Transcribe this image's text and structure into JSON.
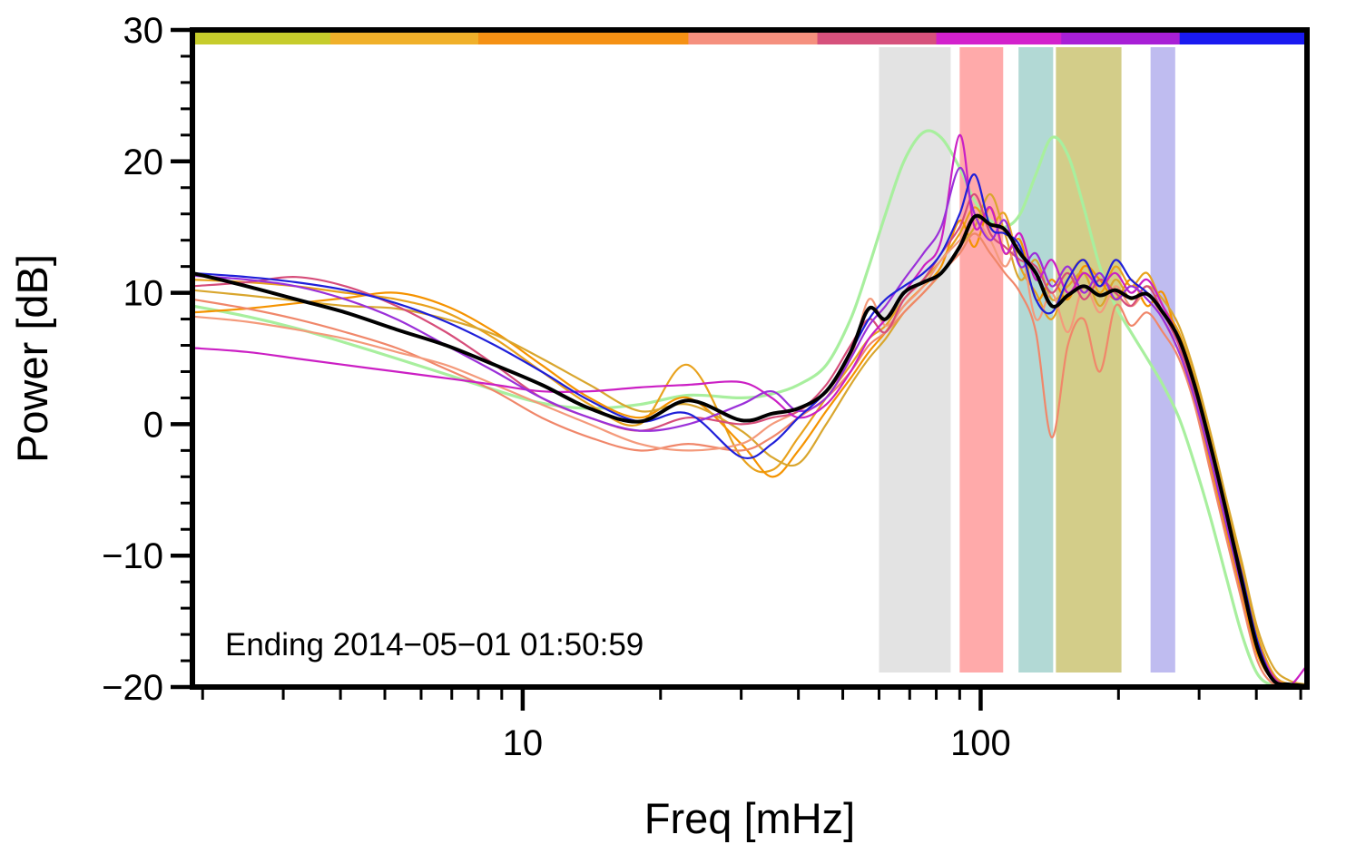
{
  "chart_data": {
    "type": "line",
    "title": "",
    "xlabel": "Freq [mHz]",
    "ylabel": "Power [dB]",
    "annotation": "Ending 2014−05−01 01:50:59",
    "x_scale": "log",
    "xlim": [
      1.9,
      516
    ],
    "ylim": [
      -20,
      30
    ],
    "grid": false,
    "legend": "none",
    "x_major_ticks": [
      {
        "value": 10,
        "label": "10"
      },
      {
        "value": 100,
        "label": "100"
      }
    ],
    "x_minor_ticks": [
      2,
      3,
      4,
      5,
      6,
      7,
      8,
      9,
      20,
      30,
      40,
      50,
      60,
      70,
      80,
      90,
      200,
      300,
      400,
      500
    ],
    "y_major_ticks": [
      {
        "value": 30,
        "label": "30"
      },
      {
        "value": 20,
        "label": "20"
      },
      {
        "value": 10,
        "label": "10"
      },
      {
        "value": 0,
        "label": "0"
      },
      {
        "value": -10,
        "label": "−10"
      },
      {
        "value": -20,
        "label": "−20"
      }
    ],
    "y_minor_step": 2,
    "bands": [
      {
        "name": "band-gray",
        "from": 60,
        "to": 86,
        "color": "#e3e3e3"
      },
      {
        "name": "band-red",
        "from": 90,
        "to": 112,
        "color": "#ffaaaa"
      },
      {
        "name": "band-teal",
        "from": 121,
        "to": 144,
        "color": "#b2d9d5"
      },
      {
        "name": "band-olive",
        "from": 146,
        "to": 203,
        "color": "#d3cd89"
      },
      {
        "name": "band-lavender",
        "from": 235,
        "to": 266,
        "color": "#bfbcf0"
      }
    ],
    "top_bar_segments": [
      {
        "from": 1.9,
        "to": 3.8,
        "color": "#c6cc2c"
      },
      {
        "from": 3.8,
        "to": 8.0,
        "color": "#f0b02a"
      },
      {
        "from": 8.0,
        "to": 23,
        "color": "#f59114"
      },
      {
        "from": 23,
        "to": 44,
        "color": "#f5907e"
      },
      {
        "from": 44,
        "to": 80,
        "color": "#d6517c"
      },
      {
        "from": 80,
        "to": 150,
        "color": "#d321cc"
      },
      {
        "from": 150,
        "to": 272,
        "color": "#a81fd6"
      },
      {
        "from": 272,
        "to": 516,
        "color": "#1a1af0"
      }
    ],
    "frequencies": [
      1.9,
      2.5,
      3.2,
      4.1,
      5.3,
      6.8,
      8.7,
      11,
      14,
      18,
      23,
      30,
      35,
      40,
      46,
      52,
      57,
      62,
      68,
      75,
      82,
      90,
      97,
      105,
      113,
      122,
      132,
      143,
      155,
      168,
      182,
      197,
      213,
      231,
      250,
      271,
      293,
      317,
      343,
      372,
      402,
      436,
      472,
      512
    ],
    "series": [
      {
        "name": "spectrum-green",
        "color": "#a8ef9e",
        "width": 3.2,
        "values": [
          9.0,
          8.2,
          7.3,
          6.2,
          5.0,
          3.8,
          2.6,
          1.6,
          1.2,
          1.5,
          2.2,
          2.0,
          2.3,
          3.0,
          4.5,
          8.0,
          12.0,
          16.0,
          20.0,
          22.2,
          21.8,
          19.5,
          17.0,
          15.5,
          15.0,
          16.0,
          19.0,
          21.8,
          20.5,
          16.5,
          12.0,
          9.0,
          7.0,
          5.0,
          3.0,
          0.5,
          -3.0,
          -7.0,
          -11.5,
          -16.0,
          -19.0,
          -19.9,
          -20.0,
          -20.0
        ]
      },
      {
        "name": "spectrum-orange1",
        "color": "#e8a21d",
        "width": 2.2,
        "values": [
          11.0,
          10.8,
          10.5,
          10.0,
          9.5,
          8.5,
          6.5,
          4.0,
          1.5,
          0.0,
          4.5,
          -2.5,
          -3.5,
          -1.0,
          2.0,
          4.5,
          6.5,
          7.5,
          9.5,
          11.0,
          12.5,
          14.5,
          16.5,
          15.0,
          16.0,
          12.0,
          10.0,
          8.0,
          11.0,
          12.5,
          10.0,
          12.0,
          10.5,
          11.5,
          9.0,
          7.0,
          3.5,
          -1.0,
          -6.0,
          -11.0,
          -16.0,
          -19.0,
          -19.8,
          -20.0
        ]
      },
      {
        "name": "spectrum-orange2",
        "color": "#f59300",
        "width": 2.2,
        "values": [
          8.5,
          8.8,
          9.2,
          9.6,
          10.0,
          9.0,
          7.0,
          4.5,
          2.0,
          0.5,
          2.0,
          -1.5,
          -4.0,
          -2.0,
          1.0,
          3.5,
          5.5,
          7.0,
          9.0,
          10.5,
          12.0,
          15.5,
          13.5,
          16.5,
          13.0,
          14.0,
          9.5,
          11.0,
          9.5,
          12.0,
          11.0,
          9.5,
          11.0,
          9.0,
          10.0,
          6.0,
          2.0,
          -3.0,
          -8.0,
          -13.0,
          -17.5,
          -19.5,
          -20.0,
          -20.0
        ]
      },
      {
        "name": "spectrum-amber",
        "color": "#d9a62e",
        "width": 2.2,
        "values": [
          10.2,
          9.8,
          9.4,
          9.0,
          8.8,
          8.0,
          6.8,
          5.0,
          3.0,
          1.0,
          1.5,
          -0.5,
          -2.5,
          -3.0,
          0.0,
          3.0,
          5.0,
          6.5,
          8.5,
          10.0,
          11.5,
          13.5,
          15.0,
          17.5,
          14.5,
          11.0,
          12.5,
          9.5,
          10.5,
          11.5,
          9.0,
          11.0,
          9.5,
          10.5,
          9.5,
          7.5,
          4.0,
          -0.5,
          -5.5,
          -10.5,
          -15.5,
          -18.5,
          -19.5,
          -19.8
        ]
      },
      {
        "name": "spectrum-salmon1",
        "color": "#f0876a",
        "width": 2.2,
        "values": [
          9.5,
          8.8,
          8.0,
          7.0,
          5.8,
          4.2,
          2.5,
          0.5,
          -1.0,
          -2.0,
          -1.5,
          -2.0,
          -1.0,
          0.5,
          2.0,
          4.0,
          6.0,
          7.0,
          8.5,
          10.0,
          11.5,
          13.0,
          14.5,
          13.0,
          11.5,
          10.0,
          7.0,
          -1.0,
          6.0,
          8.0,
          4.0,
          9.0,
          7.5,
          8.5,
          7.0,
          5.0,
          1.5,
          -3.5,
          -8.5,
          -13.5,
          -18.0,
          -19.8,
          -20.0,
          -20.0
        ]
      },
      {
        "name": "spectrum-salmon2",
        "color": "#f49a7b",
        "width": 2.2,
        "values": [
          8.2,
          7.8,
          7.2,
          6.5,
          5.5,
          4.5,
          3.0,
          1.5,
          0.0,
          -1.5,
          -2.0,
          -1.5,
          0.0,
          1.0,
          2.5,
          5.0,
          9.5,
          7.5,
          9.0,
          10.5,
          12.5,
          14.0,
          15.5,
          14.0,
          12.0,
          13.5,
          8.0,
          10.0,
          7.0,
          10.5,
          8.5,
          10.5,
          9.0,
          10.0,
          8.0,
          5.5,
          2.5,
          -2.5,
          -7.5,
          -12.5,
          -17.0,
          -19.5,
          -20.0,
          -20.0
        ]
      },
      {
        "name": "spectrum-crimson",
        "color": "#d64d7a",
        "width": 2.2,
        "values": [
          10.5,
          10.8,
          11.2,
          10.5,
          9.0,
          7.0,
          4.5,
          2.0,
          0.5,
          -0.5,
          0.5,
          0.0,
          0.5,
          1.0,
          3.0,
          6.0,
          8.0,
          7.0,
          9.5,
          11.0,
          13.0,
          15.0,
          17.5,
          14.5,
          13.5,
          12.5,
          12.0,
          10.0,
          11.5,
          9.5,
          11.0,
          10.0,
          9.0,
          10.5,
          8.5,
          6.0,
          2.5,
          -2.0,
          -7.0,
          -12.0,
          -16.5,
          -19.2,
          -19.9,
          -20.0
        ]
      },
      {
        "name": "spectrum-magenta",
        "color": "#cb1fc4",
        "width": 2.2,
        "values": [
          5.8,
          5.5,
          5.0,
          4.5,
          4.0,
          3.5,
          3.0,
          2.5,
          2.5,
          2.8,
          3.0,
          3.2,
          2.0,
          0.5,
          1.5,
          4.0,
          6.5,
          8.0,
          10.0,
          12.0,
          14.0,
          22.0,
          15.0,
          16.5,
          13.0,
          14.5,
          11.0,
          12.5,
          10.0,
          11.5,
          10.5,
          11.5,
          10.0,
          11.0,
          9.0,
          6.5,
          3.0,
          -1.5,
          -6.5,
          -11.5,
          -16.5,
          -19.3,
          -19.9,
          -18.5
        ]
      },
      {
        "name": "spectrum-purple",
        "color": "#9b30d9",
        "width": 2.2,
        "values": [
          11.3,
          11.0,
          10.5,
          9.5,
          8.0,
          6.0,
          4.0,
          2.0,
          0.5,
          -0.5,
          0.0,
          1.5,
          2.5,
          1.0,
          2.0,
          5.0,
          7.5,
          9.0,
          11.0,
          13.0,
          15.0,
          19.5,
          16.0,
          14.0,
          15.5,
          12.0,
          13.0,
          10.5,
          12.0,
          10.0,
          11.5,
          9.5,
          10.5,
          9.5,
          8.0,
          5.5,
          2.0,
          -2.5,
          -7.5,
          -12.5,
          -17.0,
          -19.5,
          -19.9,
          -20.0
        ]
      },
      {
        "name": "spectrum-blue",
        "color": "#1f1fd9",
        "width": 2.2,
        "values": [
          11.5,
          11.2,
          10.8,
          10.2,
          9.2,
          7.8,
          6.0,
          4.0,
          1.8,
          0.2,
          0.8,
          -2.5,
          -1.5,
          0.5,
          2.5,
          5.5,
          8.0,
          9.5,
          10.5,
          11.5,
          13.0,
          16.0,
          19.0,
          15.0,
          14.5,
          13.5,
          9.5,
          8.5,
          11.0,
          12.5,
          10.5,
          12.5,
          11.0,
          10.0,
          8.5,
          6.5,
          3.0,
          -1.5,
          -6.5,
          -11.5,
          -16.5,
          -19.5,
          -20.0,
          -20.0
        ]
      },
      {
        "name": "spectrum-mean-black",
        "color": "#000000",
        "width": 4.0,
        "values": [
          11.5,
          10.5,
          9.5,
          8.5,
          7.2,
          6.0,
          4.5,
          3.0,
          1.2,
          0.2,
          1.8,
          0.3,
          0.8,
          1.2,
          2.5,
          5.5,
          8.8,
          8.0,
          10.0,
          10.8,
          11.5,
          13.5,
          15.8,
          15.2,
          14.8,
          13.0,
          11.5,
          9.0,
          9.8,
          10.5,
          9.8,
          10.2,
          9.6,
          9.9,
          8.5,
          6.5,
          3.0,
          -1.5,
          -6.5,
          -12.0,
          -17.0,
          -19.5,
          -19.8,
          -19.9
        ]
      }
    ]
  }
}
